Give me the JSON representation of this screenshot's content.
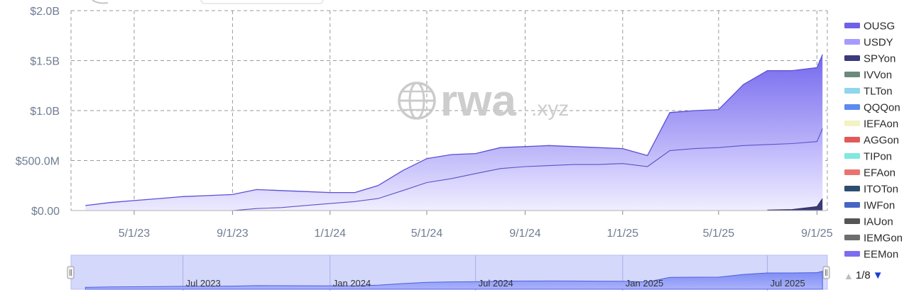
{
  "chart_data": {
    "type": "area",
    "x": [
      "2023-03-01",
      "2023-04-01",
      "2023-05-01",
      "2023-06-01",
      "2023-07-01",
      "2023-08-01",
      "2023-09-01",
      "2023-10-01",
      "2023-11-01",
      "2023-12-01",
      "2024-01-01",
      "2024-02-01",
      "2024-03-01",
      "2024-04-01",
      "2024-05-01",
      "2024-06-01",
      "2024-07-01",
      "2024-08-01",
      "2024-09-01",
      "2024-10-01",
      "2024-11-01",
      "2024-12-01",
      "2025-01-01",
      "2025-02-01",
      "2025-03-01",
      "2025-04-01",
      "2025-05-01",
      "2025-06-01",
      "2025-07-01",
      "2025-08-01",
      "2025-09-01",
      "2025-09-08"
    ],
    "series": [
      {
        "name": "OUSG",
        "color": "#7a6cf0",
        "values": [
          0.05,
          0.08,
          0.1,
          0.12,
          0.14,
          0.15,
          0.16,
          0.21,
          0.2,
          0.19,
          0.18,
          0.18,
          0.25,
          0.4,
          0.52,
          0.56,
          0.57,
          0.63,
          0.64,
          0.65,
          0.64,
          0.63,
          0.62,
          0.55,
          0.98,
          1.0,
          1.01,
          1.26,
          1.4,
          1.4,
          1.43,
          1.56
        ]
      },
      {
        "name": "USDY",
        "color": "#a9a1ff",
        "values": [
          0,
          0,
          0,
          0,
          0,
          0,
          0,
          0.02,
          0.03,
          0.05,
          0.07,
          0.09,
          0.12,
          0.2,
          0.28,
          0.32,
          0.37,
          0.42,
          0.44,
          0.45,
          0.46,
          0.46,
          0.47,
          0.44,
          0.6,
          0.62,
          0.63,
          0.65,
          0.66,
          0.67,
          0.69,
          0.82
        ]
      },
      {
        "name": "SPYon",
        "color": "#3b3b78",
        "values": [
          0,
          0,
          0,
          0,
          0,
          0,
          0,
          0,
          0,
          0,
          0,
          0,
          0,
          0,
          0,
          0,
          0,
          0,
          0,
          0,
          0,
          0,
          0,
          0,
          0,
          0,
          0,
          0,
          0.005,
          0.01,
          0.04,
          0.12
        ]
      }
    ],
    "x_ticks": [
      "5/1/23",
      "9/1/23",
      "1/1/24",
      "5/1/24",
      "9/1/24",
      "1/1/25",
      "5/1/25",
      "9/1/25"
    ],
    "y_ticks": [
      "$0.00",
      "$500.0M",
      "$1.0B",
      "$1.5B",
      "$2.0B"
    ],
    "y_unit": "billions USD",
    "ylim": [
      0,
      2.0
    ],
    "grid": true,
    "legend_position": "right",
    "legend": [
      {
        "name": "OUSG",
        "color": "#6e62e8"
      },
      {
        "name": "USDY",
        "color": "#a59bff"
      },
      {
        "name": "SPYon",
        "color": "#3a3a7c"
      },
      {
        "name": "IVVon",
        "color": "#6c8a7c"
      },
      {
        "name": "TLTon",
        "color": "#8fd6f0"
      },
      {
        "name": "QQQon",
        "color": "#5b8af0"
      },
      {
        "name": "IEFAon",
        "color": "#f3f2c2"
      },
      {
        "name": "AGGon",
        "color": "#e25a57"
      },
      {
        "name": "TIPon",
        "color": "#80e8e0"
      },
      {
        "name": "EFAon",
        "color": "#e87470"
      },
      {
        "name": "ITOTon",
        "color": "#2e4e70"
      },
      {
        "name": "IWFon",
        "color": "#4666c4"
      },
      {
        "name": "IAUon",
        "color": "#555555"
      },
      {
        "name": "IEMGon",
        "color": "#6e6e6e"
      },
      {
        "name": "EEMon",
        "color": "#7c6cf2"
      }
    ],
    "navigator": {
      "labels": [
        "Jul 2023",
        "Jan 2024",
        "Jul 2024",
        "Jan 2025",
        "Jul 2025"
      ]
    }
  },
  "watermark": {
    "brand": "rwa",
    "suffix": ".xyz"
  },
  "pager": {
    "text": "1/8",
    "up_icon": "triangle-up",
    "down_icon": "triangle-down"
  }
}
